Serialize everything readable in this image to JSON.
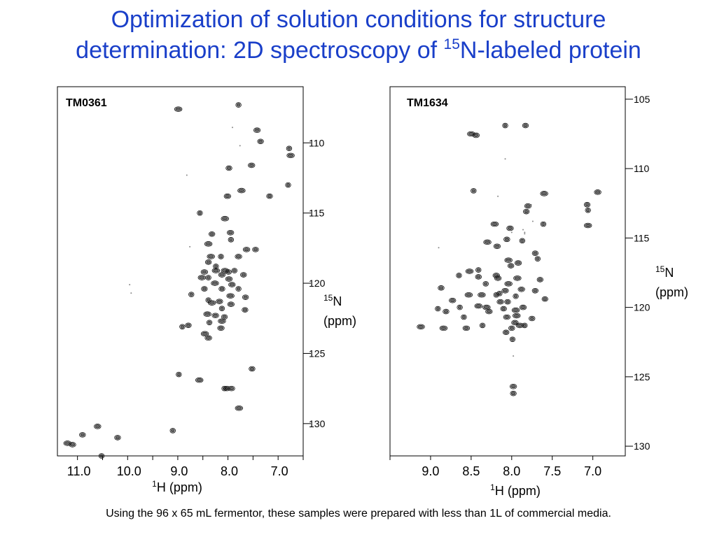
{
  "slide": {
    "title_line1": "Optimization of solution conditions for structure",
    "title_line2_prefix": "determination: 2D spectroscopy of ",
    "title_line2_sup": "15",
    "title_line2_suffix": "N-labeled protein",
    "footnote": "Using the 96 x 65 mL fermentor, these samples were prepared with less than 1L of commercial media.",
    "colors": {
      "title": "#1a3fc9",
      "ink": "#000000",
      "peak": "#111111"
    }
  },
  "chart_data": [
    {
      "type": "scatter",
      "label": "TM0361",
      "xlabel_sup": "1",
      "xlabel": "H (ppm)",
      "ylabel_sup": "15",
      "ylabel_line1": "N",
      "ylabel_line2": "(ppm)",
      "xlim": [
        11.4,
        6.5
      ],
      "ylim": [
        106.0,
        132.3
      ],
      "x_ticks": [
        11.0,
        10.0,
        9.0,
        8.0,
        7.0
      ],
      "x_tick_labels": [
        "11.0",
        "10.0",
        "9.0",
        "8.0",
        "7.0"
      ],
      "y_ticks": [
        110,
        115,
        120,
        125,
        130
      ],
      "y_tick_labels": [
        "110",
        "115",
        "120",
        "125",
        "130"
      ],
      "grid": false,
      "peaks": [
        [
          7.79,
          107.3
        ],
        [
          8.99,
          107.6
        ],
        [
          7.42,
          109.1
        ],
        [
          7.35,
          109.9
        ],
        [
          6.78,
          110.4
        ],
        [
          6.75,
          110.9
        ],
        [
          7.53,
          111.6
        ],
        [
          7.98,
          111.8
        ],
        [
          6.8,
          113.0
        ],
        [
          7.73,
          113.4
        ],
        [
          8.01,
          113.8
        ],
        [
          7.17,
          113.8
        ],
        [
          8.56,
          115.0
        ],
        [
          8.06,
          115.4
        ],
        [
          7.95,
          116.4
        ],
        [
          8.32,
          116.5
        ],
        [
          7.94,
          116.9
        ],
        [
          8.39,
          117.2
        ],
        [
          7.63,
          117.6
        ],
        [
          7.45,
          117.6
        ],
        [
          8.14,
          118.1
        ],
        [
          8.34,
          118.1
        ],
        [
          7.79,
          118.1
        ],
        [
          8.39,
          118.5
        ],
        [
          8.24,
          118.8
        ],
        [
          8.24,
          119.1
        ],
        [
          8.12,
          119.4
        ],
        [
          7.99,
          119.2
        ],
        [
          7.87,
          119.1
        ],
        [
          8.06,
          119.1
        ],
        [
          7.98,
          119.7
        ],
        [
          8.12,
          120.4
        ],
        [
          7.79,
          120.4
        ],
        [
          8.26,
          120.0
        ],
        [
          7.92,
          120.1
        ],
        [
          7.69,
          119.4
        ],
        [
          8.39,
          119.6
        ],
        [
          8.52,
          119.6
        ],
        [
          8.47,
          119.2
        ],
        [
          8.47,
          120.4
        ],
        [
          8.73,
          120.8
        ],
        [
          7.95,
          120.9
        ],
        [
          8.17,
          121.3
        ],
        [
          7.65,
          121.0
        ],
        [
          8.39,
          121.2
        ],
        [
          8.32,
          121.4
        ],
        [
          7.94,
          121.5
        ],
        [
          7.66,
          121.9
        ],
        [
          8.12,
          121.8
        ],
        [
          8.41,
          122.2
        ],
        [
          8.25,
          122.3
        ],
        [
          8.07,
          122.4
        ],
        [
          8.37,
          122.8
        ],
        [
          8.12,
          122.7
        ],
        [
          8.14,
          123.2
        ],
        [
          8.79,
          123.0
        ],
        [
          8.91,
          123.1
        ],
        [
          8.46,
          123.6
        ],
        [
          8.39,
          123.9
        ],
        [
          7.52,
          126.1
        ],
        [
          8.98,
          126.5
        ],
        [
          8.57,
          126.9
        ],
        [
          7.93,
          127.5
        ],
        [
          8.02,
          127.5
        ],
        [
          8.07,
          127.5
        ],
        [
          7.78,
          128.9
        ],
        [
          10.6,
          130.2
        ],
        [
          10.9,
          130.8
        ],
        [
          9.1,
          130.5
        ],
        [
          11.2,
          131.4
        ],
        [
          11.1,
          131.5
        ],
        [
          10.2,
          131.0
        ],
        [
          10.52,
          132.3
        ]
      ],
      "noise": [
        [
          8.82,
          112.3
        ],
        [
          7.76,
          110.2
        ],
        [
          7.91,
          108.9
        ],
        [
          9.93,
          120.7
        ],
        [
          9.96,
          120.1
        ],
        [
          8.76,
          117.4
        ]
      ]
    },
    {
      "type": "scatter",
      "label": "TM1634",
      "xlabel_sup": "1",
      "xlabel": "H (ppm)",
      "ylabel_sup": "15",
      "ylabel_line1": "N",
      "ylabel_line2": "(ppm)",
      "xlim": [
        9.5,
        6.6
      ],
      "ylim": [
        104.1,
        130.7
      ],
      "x_ticks": [
        9.0,
        8.5,
        8.0,
        7.5,
        7.0
      ],
      "x_tick_labels": [
        "9.0",
        "8.5",
        "8.0",
        "7.5",
        "7.0"
      ],
      "y_ticks": [
        105,
        110,
        115,
        120,
        125,
        130
      ],
      "y_tick_labels": [
        "105",
        "110",
        "115",
        "120",
        "125",
        "130"
      ],
      "grid": false,
      "peaks": [
        [
          8.08,
          106.9
        ],
        [
          8.5,
          107.5
        ],
        [
          8.44,
          107.6
        ],
        [
          7.83,
          106.9
        ],
        [
          8.47,
          111.6
        ],
        [
          7.6,
          111.8
        ],
        [
          6.94,
          111.7
        ],
        [
          7.07,
          112.6
        ],
        [
          7.06,
          113.0
        ],
        [
          7.06,
          114.1
        ],
        [
          7.8,
          112.7
        ],
        [
          7.82,
          113.1
        ],
        [
          7.61,
          114.0
        ],
        [
          8.21,
          114.0
        ],
        [
          8.02,
          114.3
        ],
        [
          8.06,
          115.1
        ],
        [
          7.87,
          115.2
        ],
        [
          8.3,
          115.3
        ],
        [
          8.18,
          115.6
        ],
        [
          7.71,
          116.1
        ],
        [
          7.68,
          116.5
        ],
        [
          8.04,
          116.6
        ],
        [
          7.92,
          116.8
        ],
        [
          8.01,
          117.0
        ],
        [
          8.41,
          117.3
        ],
        [
          8.52,
          117.4
        ],
        [
          8.19,
          117.7
        ],
        [
          8.41,
          117.8
        ],
        [
          8.65,
          117.7
        ],
        [
          7.93,
          117.9
        ],
        [
          8.17,
          117.9
        ],
        [
          7.65,
          118.0
        ],
        [
          8.32,
          118.3
        ],
        [
          8.04,
          118.3
        ],
        [
          8.08,
          118.8
        ],
        [
          8.87,
          118.6
        ],
        [
          8.15,
          119.0
        ],
        [
          8.53,
          119.1
        ],
        [
          7.88,
          118.7
        ],
        [
          7.71,
          118.8
        ],
        [
          8.19,
          119.1
        ],
        [
          8.37,
          119.1
        ],
        [
          8.73,
          119.5
        ],
        [
          7.59,
          119.4
        ],
        [
          7.95,
          119.2
        ],
        [
          8.41,
          119.9
        ],
        [
          8.14,
          119.6
        ],
        [
          8.05,
          119.6
        ],
        [
          8.64,
          120.0
        ],
        [
          8.31,
          120.0
        ],
        [
          7.86,
          120.0
        ],
        [
          8.81,
          120.3
        ],
        [
          8.91,
          120.1
        ],
        [
          7.95,
          120.2
        ],
        [
          8.28,
          120.3
        ],
        [
          8.1,
          120.1
        ],
        [
          8.59,
          120.7
        ],
        [
          7.94,
          120.6
        ],
        [
          8.06,
          120.7
        ],
        [
          7.75,
          120.8
        ],
        [
          8.36,
          121.3
        ],
        [
          7.9,
          121.3
        ],
        [
          7.96,
          121.1
        ],
        [
          8.0,
          121.5
        ],
        [
          7.84,
          121.3
        ],
        [
          8.84,
          121.5
        ],
        [
          8.56,
          121.5
        ],
        [
          8.07,
          121.8
        ],
        [
          7.99,
          122.3
        ],
        [
          9.12,
          121.4
        ],
        [
          7.98,
          125.7
        ],
        [
          7.98,
          126.2
        ]
      ],
      "noise": [
        [
          8.17,
          112.0
        ],
        [
          7.84,
          114.6
        ],
        [
          7.84,
          114.7
        ],
        [
          8.0,
          114.6
        ],
        [
          7.86,
          114.4
        ],
        [
          8.9,
          115.7
        ],
        [
          8.08,
          109.3
        ],
        [
          7.76,
          112.6
        ],
        [
          7.74,
          113.8
        ],
        [
          7.98,
          123.5
        ]
      ]
    }
  ]
}
